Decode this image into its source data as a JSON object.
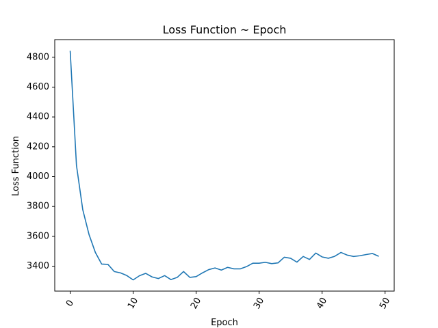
{
  "chart_data": {
    "type": "line",
    "title": "Loss Function ~ Epoch",
    "xlabel": "Epoch",
    "ylabel": "Loss Function",
    "xlim": [
      -2.45,
      51.45
    ],
    "ylim": [
      3233,
      4918
    ],
    "xticks": [
      0,
      10,
      20,
      30,
      40,
      50
    ],
    "yticks": [
      3400,
      3600,
      3800,
      4000,
      4200,
      4400,
      4600,
      4800
    ],
    "xtick_rotation": -60,
    "grid": false,
    "color": "#1f77b4",
    "series": [
      {
        "x": [
          0,
          1,
          2,
          3,
          4,
          5,
          6,
          7,
          8,
          9,
          10,
          11,
          12,
          13,
          14,
          15,
          16,
          17,
          18,
          19,
          20,
          21,
          22,
          23,
          24,
          25,
          26,
          27,
          28,
          29,
          30,
          31,
          32,
          33,
          34,
          35,
          36,
          37,
          38,
          39,
          40,
          41,
          42,
          43,
          44,
          45,
          46,
          47,
          48,
          49
        ],
        "values": [
          4843,
          4075,
          3778,
          3611,
          3492,
          3414,
          3412,
          3364,
          3355,
          3337,
          3308,
          3336,
          3352,
          3328,
          3317,
          3337,
          3310,
          3325,
          3364,
          3325,
          3330,
          3355,
          3377,
          3388,
          3374,
          3392,
          3382,
          3382,
          3397,
          3420,
          3420,
          3426,
          3417,
          3422,
          3460,
          3453,
          3427,
          3465,
          3445,
          3488,
          3462,
          3453,
          3466,
          3492,
          3474,
          3465,
          3470,
          3478,
          3485,
          3466
        ]
      }
    ]
  }
}
